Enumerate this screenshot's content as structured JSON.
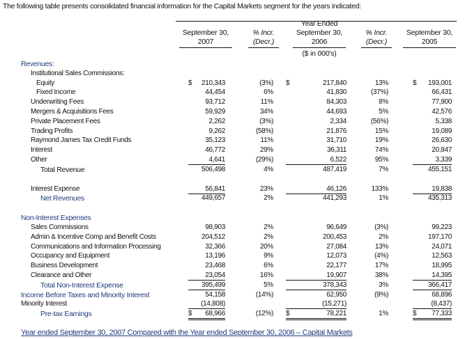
{
  "intro": "The following table presents consolidated financial information for the Capital Markets segment for the years indicated:",
  "table": {
    "columns": [
      {
        "lines": [
          "September 30,",
          "2007"
        ]
      },
      {
        "lines": [
          "% Incr.",
          "(Decr.)"
        ]
      },
      {
        "lines": [
          "Year Ended",
          "September 30,",
          "2006"
        ]
      },
      {
        "lines": [
          "% Incr.",
          "(Decr.)"
        ]
      },
      {
        "lines": [
          "September 30,",
          "2005"
        ]
      }
    ],
    "unit": "($ in 000's)",
    "rows": [
      {
        "label": "Revenues:",
        "values": [
          null,
          null,
          null,
          null,
          null
        ]
      },
      {
        "label": "Institutional Sales Commissions:",
        "values": [
          null,
          null,
          null,
          null,
          null
        ]
      },
      {
        "label": "Equity",
        "currency": "$",
        "values": [
          "210,343",
          "(3%)",
          "217,840",
          "13%",
          "193,001"
        ]
      },
      {
        "label": "Fixed Income",
        "values": [
          "44,454",
          "6%",
          "41,830",
          "(37%)",
          "66,431"
        ]
      },
      {
        "label": "Underwriting Fees",
        "values": [
          "93,712",
          "11%",
          "84,303",
          "8%",
          "77,900"
        ]
      },
      {
        "label": "Mergers & Acquisitions Fees",
        "values": [
          "59,929",
          "34%",
          "44,693",
          "5%",
          "42,576"
        ]
      },
      {
        "label": "Private Placement Fees",
        "values": [
          "2,262",
          "(3%)",
          "2,334",
          "(56%)",
          "5,338"
        ]
      },
      {
        "label": "Trading Profits",
        "values": [
          "9,262",
          "(58%)",
          "21,876",
          "15%",
          "19,089"
        ]
      },
      {
        "label": "Raymond James Tax Credit Funds",
        "values": [
          "35,123",
          "11%",
          "31,710",
          "19%",
          "26,630"
        ]
      },
      {
        "label": "Interest",
        "values": [
          "46,772",
          "29%",
          "36,311",
          "74%",
          "20,847"
        ]
      },
      {
        "label": "Other",
        "values": [
          "4,641",
          "(29%)",
          "6,522",
          "95%",
          "3,339"
        ]
      },
      {
        "label": "Total Revenue",
        "values": [
          "506,498",
          "4%",
          "487,419",
          "7%",
          "455,151"
        ]
      },
      {
        "label": "Interest Expense",
        "values": [
          "56,841",
          "23%",
          "46,126",
          "133%",
          "19,838"
        ]
      },
      {
        "label": "Net Revenues",
        "values": [
          "449,657",
          "2%",
          "441,293",
          "1%",
          "435,313"
        ]
      },
      {
        "label": "Non-Interest Expenses",
        "values": [
          null,
          null,
          null,
          null,
          null
        ]
      },
      {
        "label": "Sales Commissions",
        "values": [
          "98,903",
          "2%",
          "96,649",
          "(3%)",
          "99,223"
        ]
      },
      {
        "label": "Admin & Incentive Comp and Benefit Costs",
        "values": [
          "204,512",
          "2%",
          "200,453",
          "2%",
          "197,170"
        ]
      },
      {
        "label": "Communications and Information Processing",
        "values": [
          "32,366",
          "20%",
          "27,084",
          "13%",
          "24,071"
        ]
      },
      {
        "label": "Occupancy and Equipment",
        "values": [
          "13,196",
          "9%",
          "12,073",
          "(4%)",
          "12,563"
        ]
      },
      {
        "label": "Business Development",
        "values": [
          "23,468",
          "6%",
          "22,177",
          "17%",
          "18,995"
        ]
      },
      {
        "label": "Clearance and Other",
        "values": [
          "23,054",
          "16%",
          "19,907",
          "38%",
          "14,395"
        ]
      },
      {
        "label": "Total Non-Interest Expense",
        "values": [
          "395,499",
          "5%",
          "378,343",
          "3%",
          "366,417"
        ]
      },
      {
        "label": "Income Before Taxes and Minority Interest",
        "values": [
          "54,158",
          "(14%)",
          "62,950",
          "(9%)",
          "68,896"
        ]
      },
      {
        "label": "Minority Interest",
        "values": [
          "(14,808)",
          null,
          "(15,271)",
          null,
          "(8,437)"
        ]
      },
      {
        "label": "Pre-tax Earnings",
        "currency": "$",
        "values": [
          "68,966",
          "(12%)",
          "78,221",
          "1%",
          "77,333"
        ]
      }
    ]
  },
  "footer_heading": "Year ended September 30, 2007 Compared with the Year ended September 30, 2006 – Capital Markets"
}
